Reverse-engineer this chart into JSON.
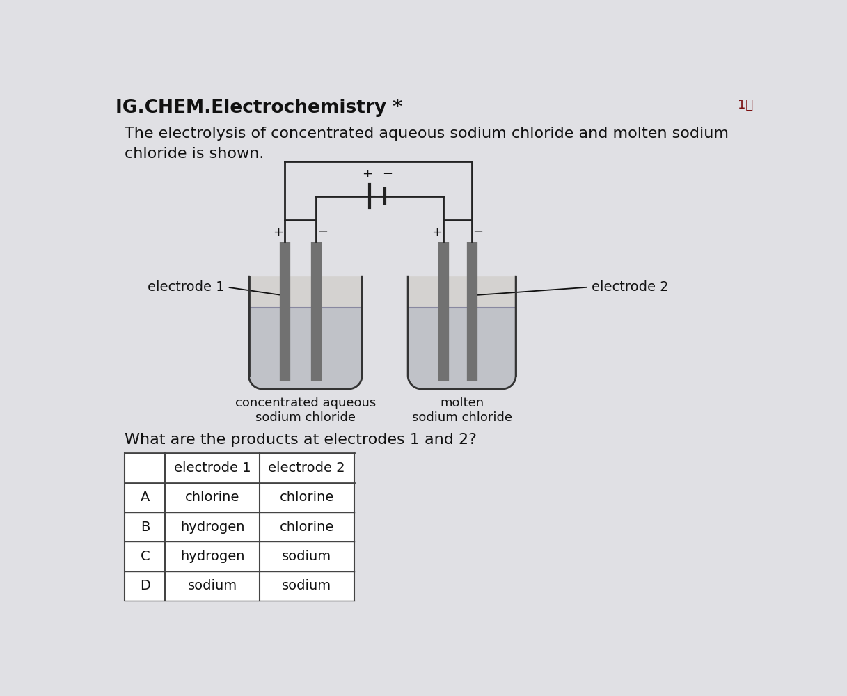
{
  "bg_color": "#e0e0e4",
  "title": "IG.CHEM.Electrochemistry *",
  "score": "1分",
  "description_line1": "The electrolysis of concentrated aqueous sodium chloride and molten sodium",
  "description_line2": "chloride is shown.",
  "question": "What are the products at electrodes 1 and 2?",
  "table_headers": [
    "",
    "electrode 1",
    "electrode 2"
  ],
  "table_rows": [
    [
      "A",
      "chlorine",
      "chlorine"
    ],
    [
      "B",
      "hydrogen",
      "chlorine"
    ],
    [
      "C",
      "hydrogen",
      "sodium"
    ],
    [
      "D",
      "sodium",
      "sodium"
    ]
  ],
  "electrode1_label": "electrode 1",
  "electrode2_label": "electrode 2",
  "cell1_label": "concentrated aqueous\nsodium chloride",
  "cell2_label": "molten\nsodium chloride",
  "electrode_color": "#717171",
  "cell_outline": "#333333",
  "cell_fill": "#d4d2d0",
  "liquid_fill": "#c0c2c8",
  "wire_color": "#222222",
  "text_color": "#111111",
  "font_size_title": 19,
  "font_size_body": 16,
  "font_size_small": 14,
  "font_size_pm": 13
}
